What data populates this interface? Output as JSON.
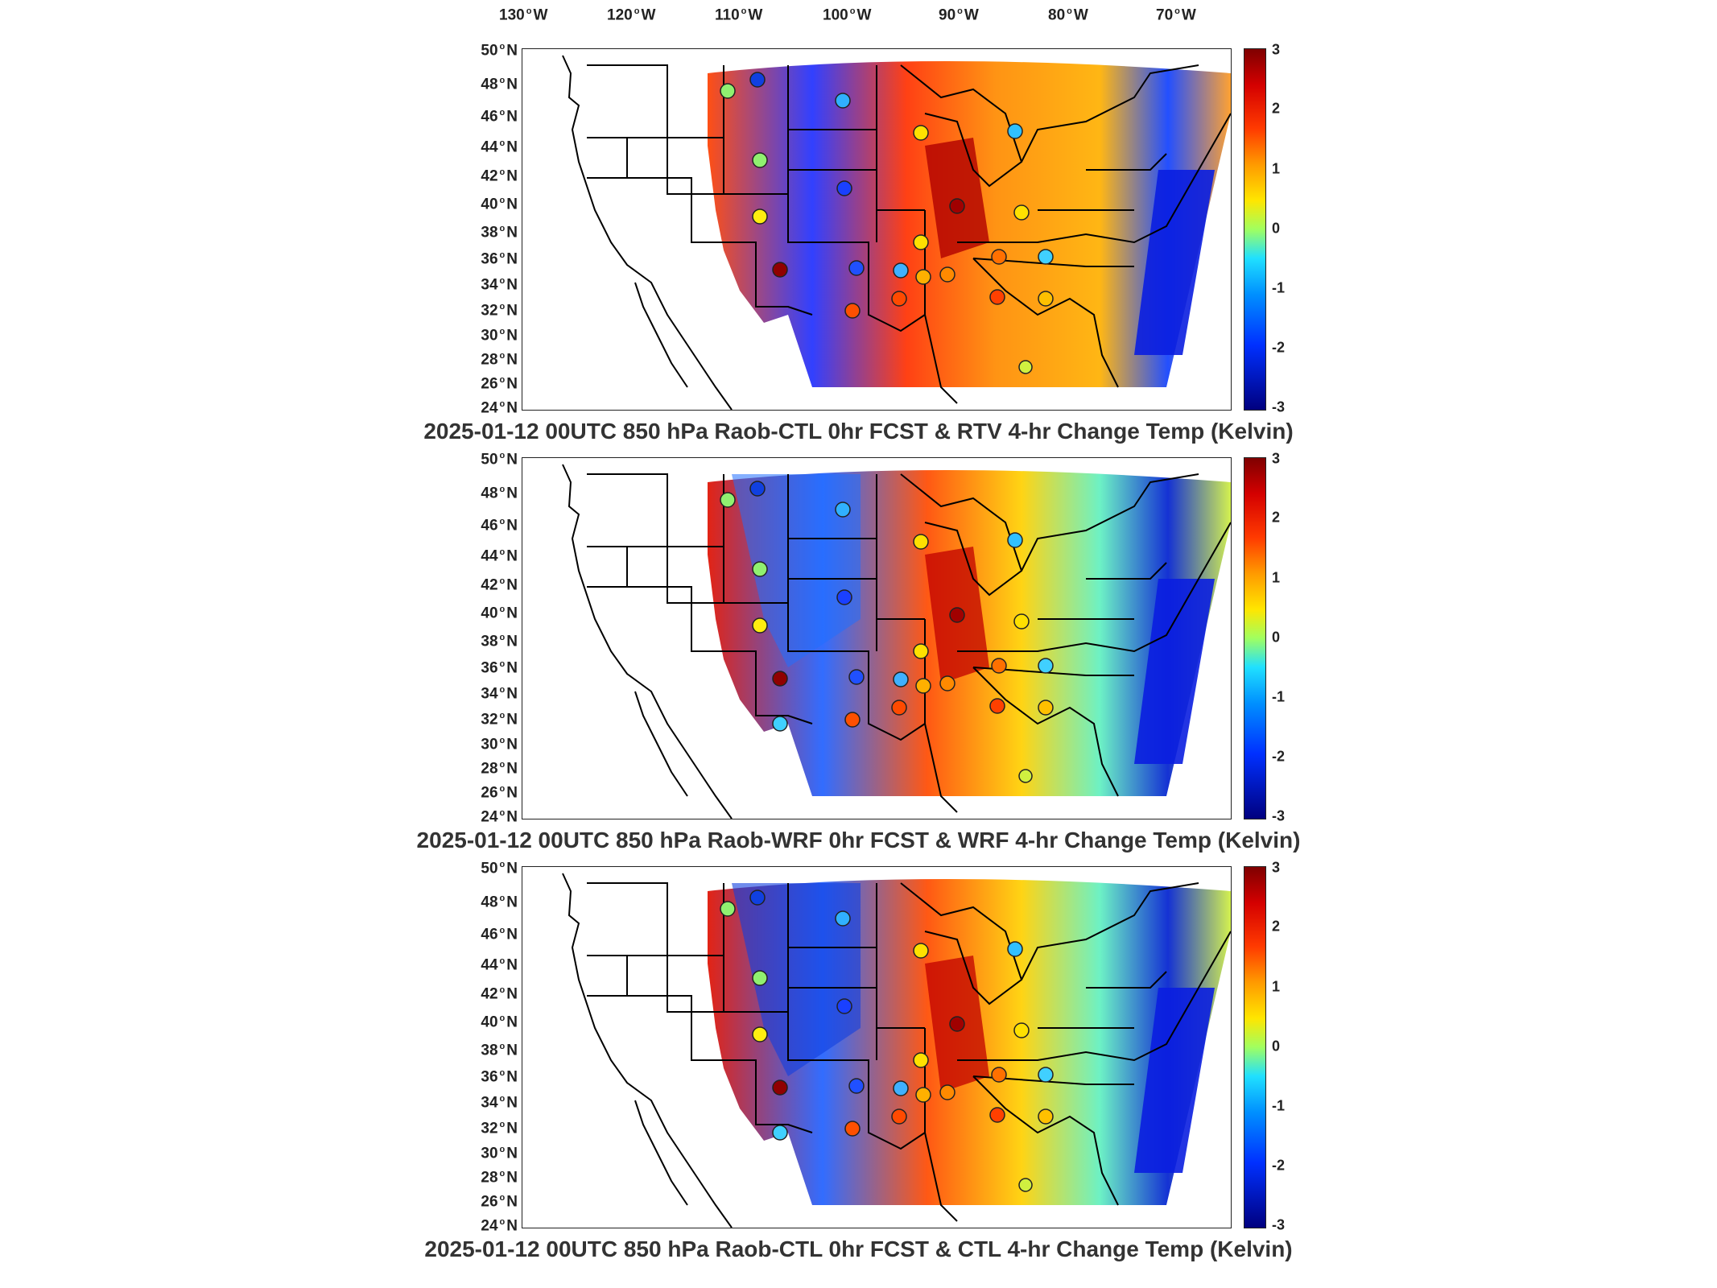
{
  "lon_axis": [
    "130",
    "120",
    "110",
    "100",
    "90",
    "80",
    "70"
  ],
  "lon_suffix": "W",
  "lat_axis": [
    "50",
    "48",
    "46",
    "44",
    "42",
    "40",
    "38",
    "36",
    "34",
    "32",
    "30",
    "28",
    "26",
    "24"
  ],
  "lat_suffix": "N",
  "colorbar": {
    "ticks": [
      "3",
      "2",
      "1",
      "0",
      "-1",
      "-2",
      "-3"
    ],
    "range": [
      -3,
      3
    ],
    "colormap": "jet"
  },
  "panels": [
    {
      "title": "2025-01-12 00UTC 850 hPa Raob-CTL 0hr FCST & RTV 4-hr Change Temp (Kelvin)"
    },
    {
      "title": "2025-01-12 00UTC 850 hPa Raob-WRF 0hr FCST & WRF 4-hr Change Temp (Kelvin)"
    },
    {
      "title": "2025-01-12 00UTC 850 hPa Raob-CTL 0hr FCST & CTL 4-hr Change Temp (Kelvin)"
    }
  ]
}
